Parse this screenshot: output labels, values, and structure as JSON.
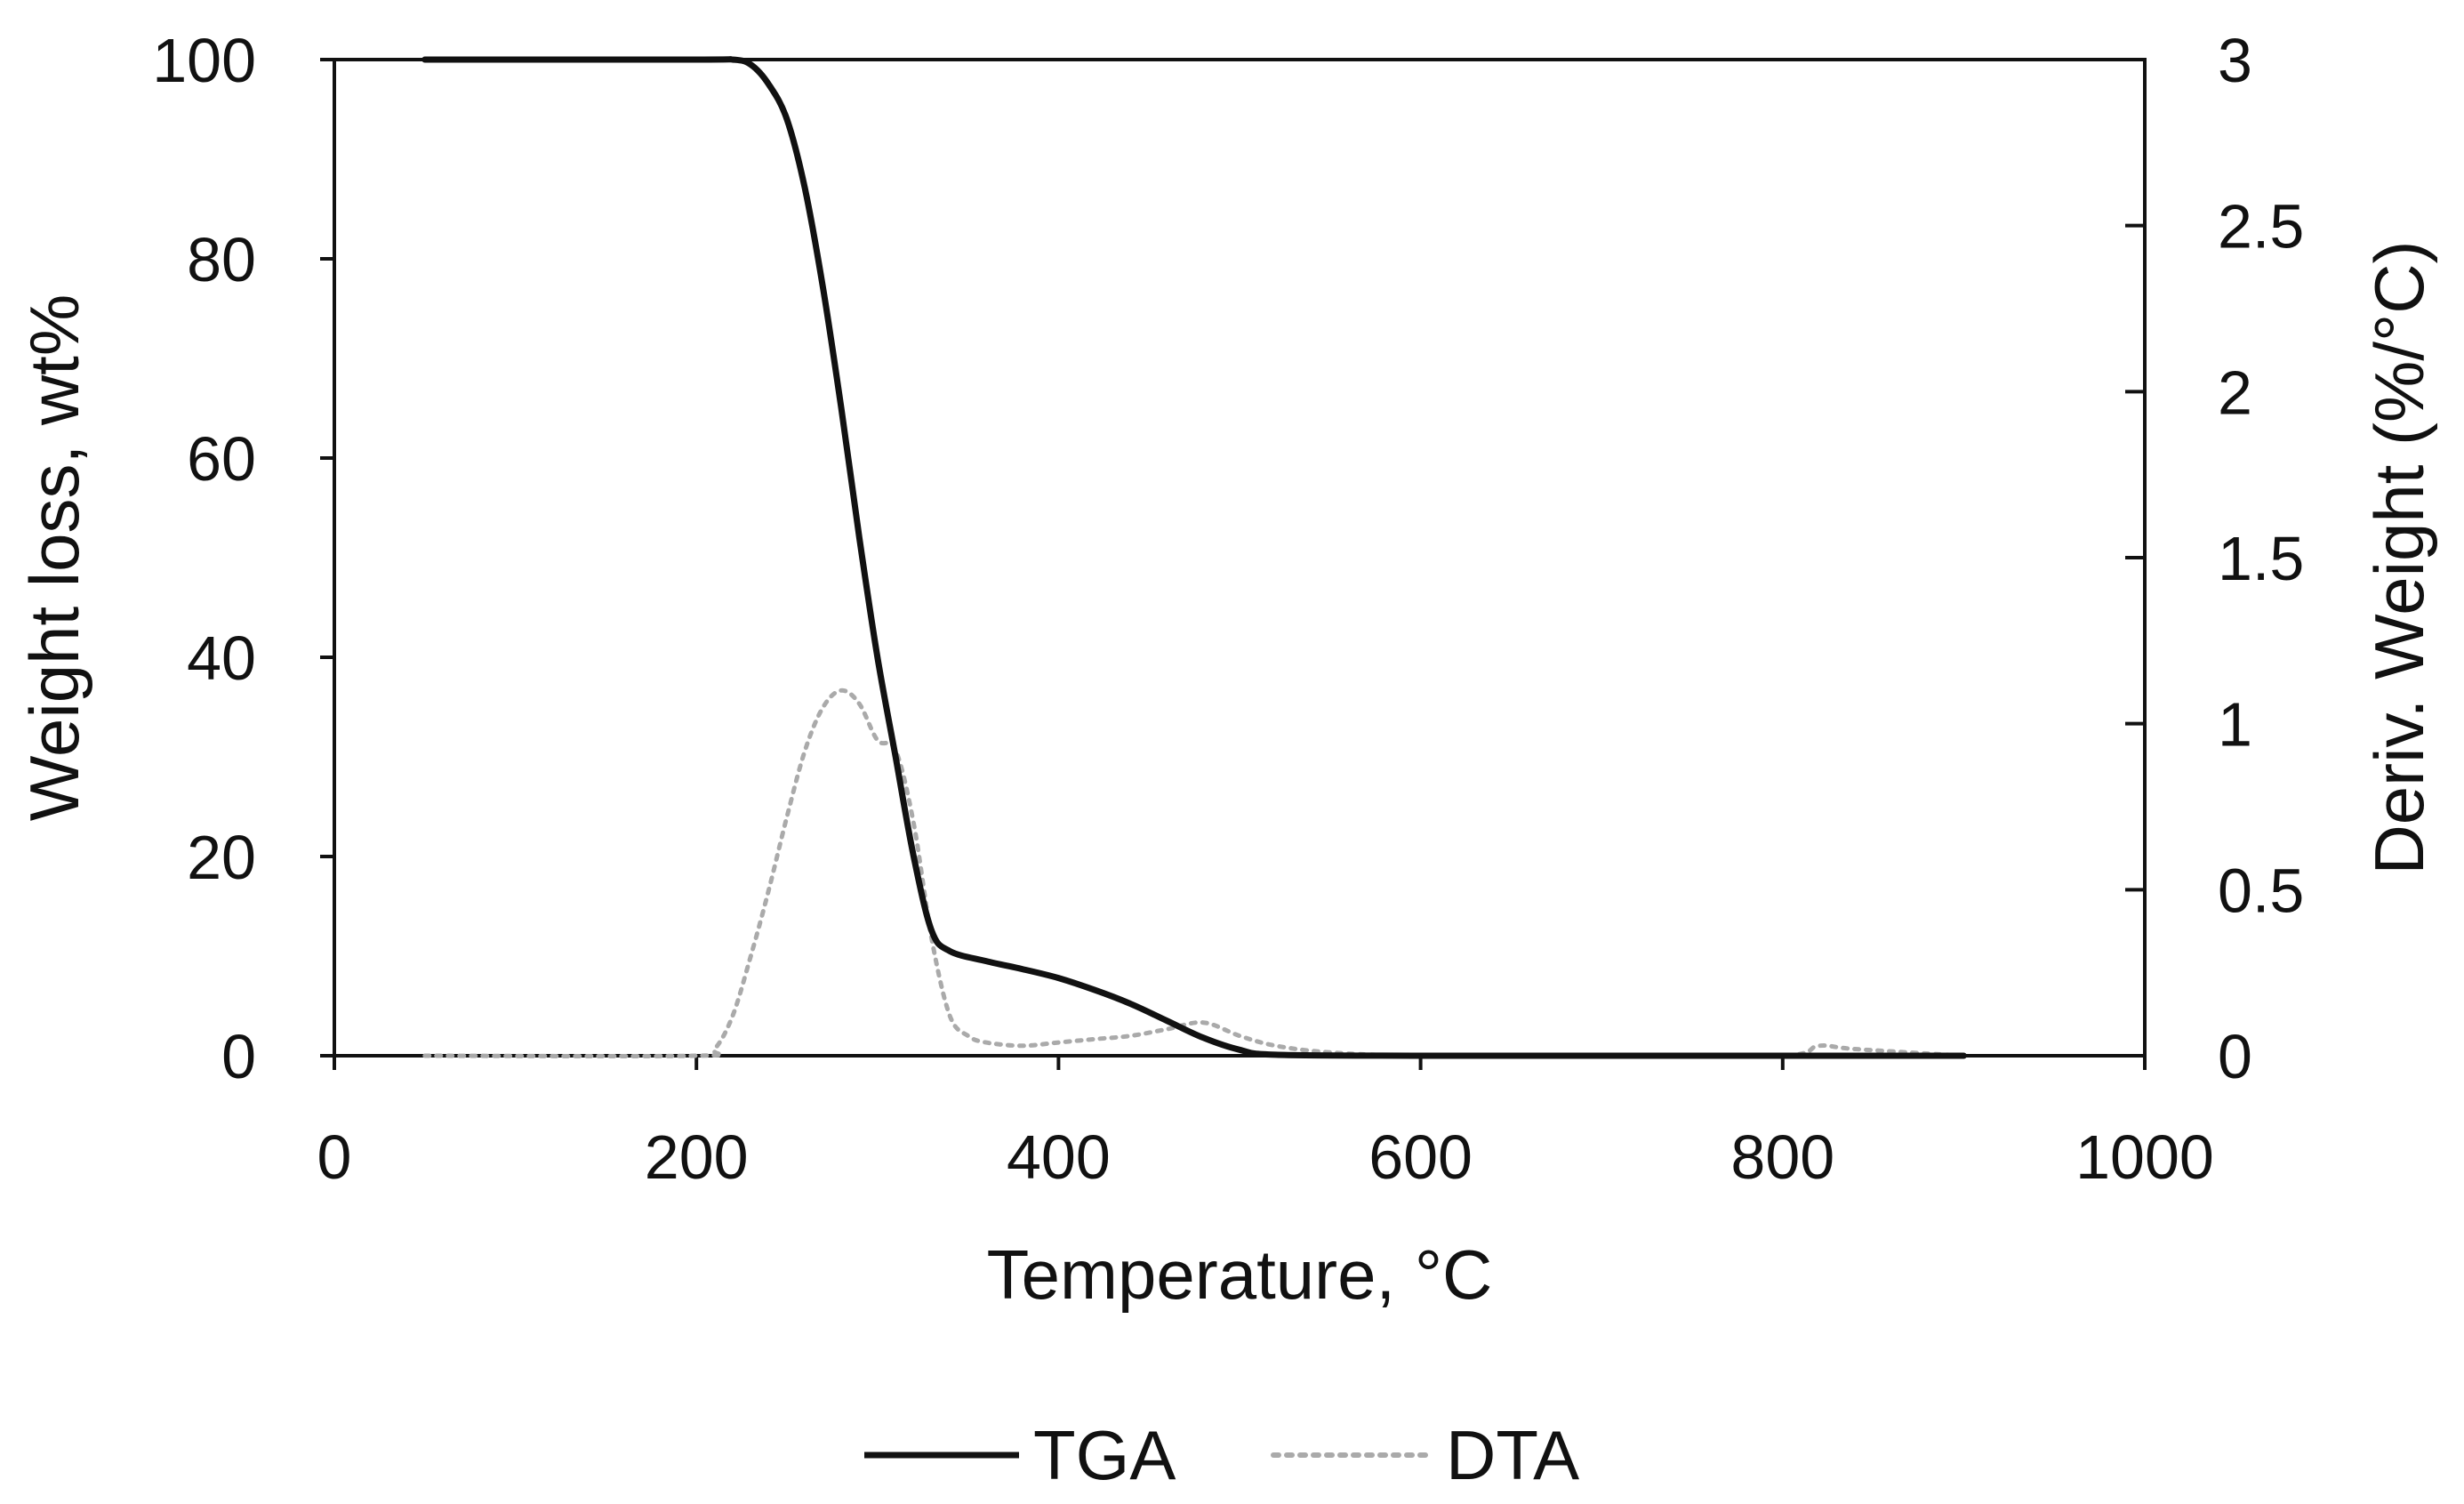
{
  "chart_data": {
    "type": "line",
    "title": "",
    "xlabel": "Temperature, °C",
    "ylabel": "Weight loss, wt%",
    "y2label": "Deriv. Weight (%/°C)",
    "xlim": [
      0,
      1000
    ],
    "ylim": [
      0,
      100
    ],
    "y2lim": [
      0,
      3
    ],
    "x_ticks": [
      "0",
      "200",
      "400",
      "600",
      "800",
      "1000"
    ],
    "y_ticks": [
      "0",
      "20",
      "40",
      "60",
      "80",
      "100"
    ],
    "y2_ticks": [
      "0",
      "0.5",
      "1",
      "1.5",
      "2",
      "2.5",
      "3"
    ],
    "grid": false,
    "legend_position": "bottom-center",
    "series": [
      {
        "name": "TGA",
        "axis": "left",
        "color": "#111111",
        "style": "solid",
        "x": [
          50,
          200,
          220,
          230,
          240,
          250,
          260,
          270,
          280,
          290,
          300,
          310,
          320,
          330,
          340,
          360,
          380,
          400,
          420,
          440,
          460,
          480,
          500,
          520,
          600,
          700,
          800,
          900
        ],
        "y": [
          100,
          100,
          100,
          99.5,
          97.5,
          94,
          87,
          77,
          65,
          52,
          40,
          30,
          20,
          12.5,
          10.5,
          9.5,
          8.7,
          7.8,
          6.6,
          5.2,
          3.5,
          1.8,
          0.6,
          0.1,
          0,
          0,
          0,
          0
        ]
      },
      {
        "name": "DTA",
        "axis": "right",
        "color": "#aaaaaa",
        "style": "dotted",
        "x": [
          50,
          200,
          210,
          220,
          230,
          240,
          250,
          260,
          270,
          280,
          290,
          300,
          310,
          320,
          330,
          340,
          350,
          360,
          380,
          400,
          420,
          440,
          460,
          480,
          500,
          520,
          550,
          600,
          700,
          800,
          820,
          840,
          900
        ],
        "y": [
          0,
          0,
          0.02,
          0.12,
          0.3,
          0.5,
          0.72,
          0.92,
          1.05,
          1.1,
          1.06,
          0.95,
          0.92,
          0.7,
          0.35,
          0.12,
          0.06,
          0.04,
          0.03,
          0.04,
          0.05,
          0.06,
          0.08,
          0.1,
          0.06,
          0.03,
          0.01,
          0,
          0,
          0,
          0.03,
          0.02,
          0
        ]
      }
    ]
  }
}
